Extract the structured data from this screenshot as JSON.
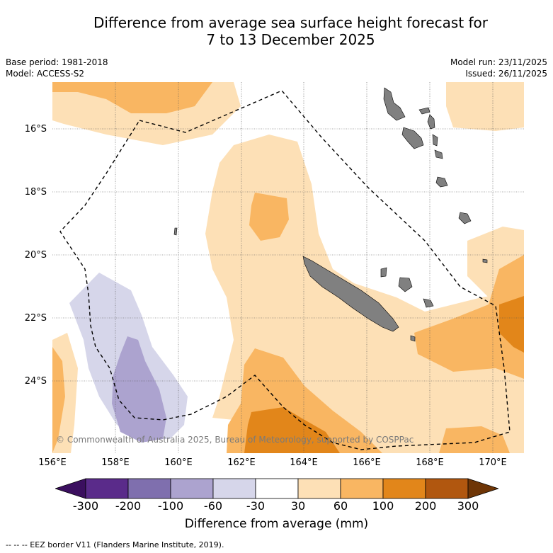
{
  "title_line1": "Difference from average sea surface height forecast for",
  "title_line2": "7 to 13 December 2025",
  "base_period": "Base period: 1981-2018",
  "model": "Model: ACCESS-S2",
  "model_run": "Model run: 23/11/2025",
  "issued": "Issued: 26/11/2025",
  "lat_labels": [
    "16°S",
    "18°S",
    "20°S",
    "22°S",
    "24°S"
  ],
  "lon_labels": [
    "156°E",
    "158°E",
    "160°E",
    "162°E",
    "164°E",
    "166°E",
    "168°E",
    "170°E"
  ],
  "copyright": "© Commonwealth of Australia 2025, Bureau of Meteorology, supported by COSPPac",
  "colorbar": {
    "ticks": [
      "-300",
      "-200",
      "-100",
      "-60",
      "-30",
      "30",
      "60",
      "100",
      "200",
      "300"
    ],
    "colors": [
      "#3b0f5f",
      "#5a2b8a",
      "#7f6fae",
      "#aca3cf",
      "#d6d6ea",
      "#ffffff",
      "#fde0b6",
      "#f9b662",
      "#e2861a",
      "#b1570f",
      "#6e3506"
    ],
    "label": "Difference from average (mm)"
  },
  "footnote": "--  --  -- EEZ border V11 (Flanders Marine Institute, 2019)."
}
